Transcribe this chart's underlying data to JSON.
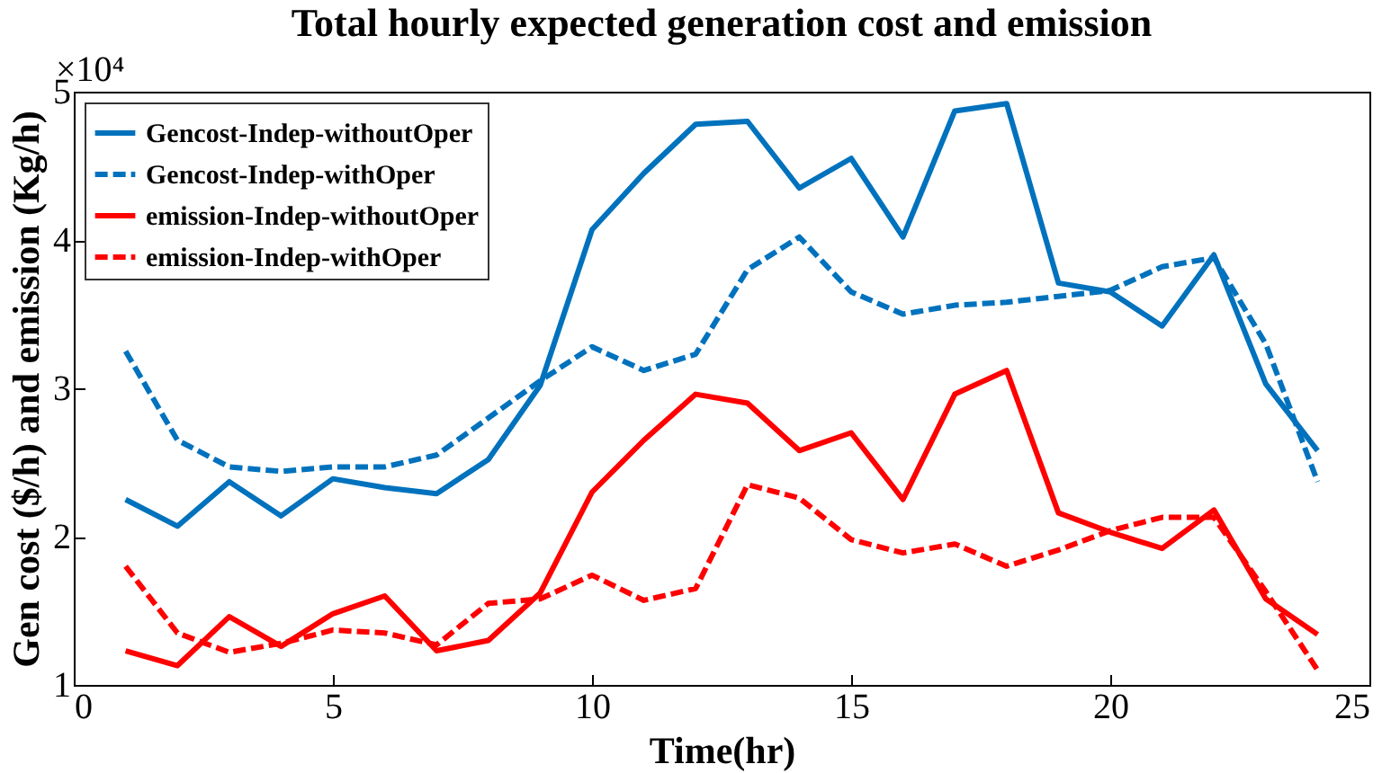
{
  "chart_data": {
    "type": "line",
    "title": "Total hourly expected generation cost and emission",
    "xlabel": "Time(hr)",
    "ylabel": "Gen cost ($/h) and emission (Kg/h)",
    "annotations": [
      "×10⁴"
    ],
    "x": [
      1,
      2,
      3,
      4,
      5,
      6,
      7,
      8,
      9,
      10,
      11,
      12,
      13,
      14,
      15,
      16,
      17,
      18,
      19,
      20,
      21,
      22,
      23,
      24
    ],
    "xlim": [
      0,
      25
    ],
    "xticks": [
      0,
      5,
      10,
      15,
      20,
      25
    ],
    "ylim": [
      1,
      5
    ],
    "yticks": [
      1,
      2,
      3,
      4,
      5
    ],
    "grid": false,
    "legend": "top left",
    "marker": "none",
    "series": [
      {
        "name": "Gencost-Indep-withoutOper",
        "color": "#0072bd",
        "line_style": "solid",
        "values": [
          2.25,
          2.07,
          2.37,
          2.14,
          2.39,
          2.33,
          2.29,
          2.52,
          3.02,
          4.07,
          4.45,
          4.78,
          4.8,
          4.35,
          4.55,
          4.02,
          4.87,
          4.92,
          3.71,
          3.65,
          3.42,
          3.9,
          3.03,
          2.58
        ]
      },
      {
        "name": "Gencost-Indep-withOper",
        "color": "#0072bd",
        "line_style": "dashed",
        "values": [
          3.25,
          2.65,
          2.47,
          2.44,
          2.47,
          2.47,
          2.55,
          2.8,
          3.05,
          3.28,
          3.12,
          3.23,
          3.8,
          4.02,
          3.65,
          3.5,
          3.56,
          3.58,
          3.62,
          3.66,
          3.82,
          3.88,
          3.3,
          2.37
        ]
      },
      {
        "name": "emission-Indep-withoutOper",
        "color": "#ff0000",
        "line_style": "solid",
        "values": [
          1.23,
          1.13,
          1.46,
          1.26,
          1.48,
          1.6,
          1.23,
          1.3,
          1.62,
          2.3,
          2.65,
          2.96,
          2.9,
          2.58,
          2.7,
          2.25,
          2.96,
          3.12,
          2.16,
          2.03,
          1.92,
          2.18,
          1.58,
          1.34
        ]
      },
      {
        "name": "emission-Indep-withOper",
        "color": "#ff0000",
        "line_style": "dashed",
        "values": [
          1.8,
          1.35,
          1.22,
          1.28,
          1.37,
          1.35,
          1.27,
          1.55,
          1.58,
          1.74,
          1.57,
          1.65,
          2.35,
          2.26,
          1.98,
          1.89,
          1.95,
          1.8,
          1.91,
          2.04,
          2.13,
          2.13,
          1.63,
          1.1
        ]
      }
    ]
  }
}
